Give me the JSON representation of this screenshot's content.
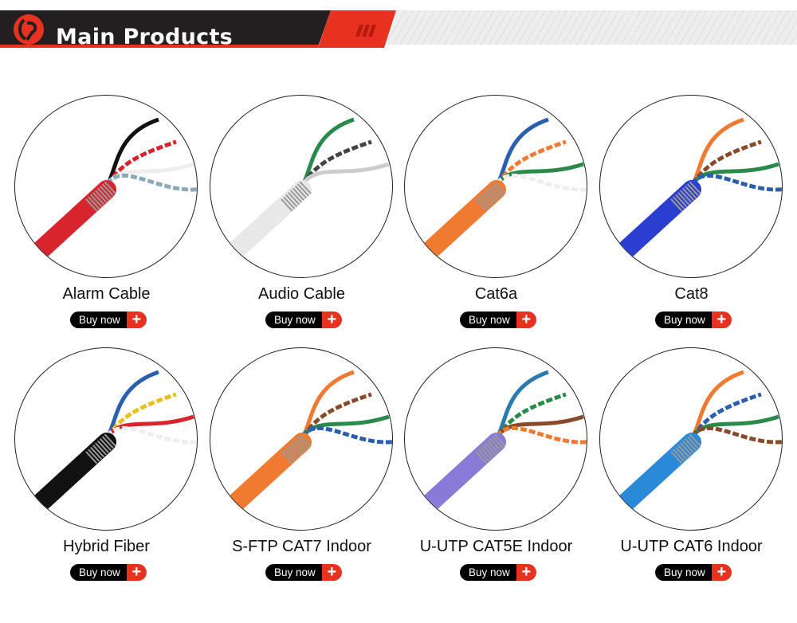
{
  "header": {
    "title": "Main Products",
    "logo": "brand-logo",
    "accent": "#e8321f",
    "dark": "#231f20"
  },
  "buy_label": "Buy now",
  "plus_icon": "+",
  "products": [
    {
      "name": "Alarm Cable",
      "jacket": "#d8242c",
      "wires": [
        "#111",
        "#d8242c",
        "#eee",
        "#8ab"
      ]
    },
    {
      "name": "Audio Cable",
      "jacket": "#e8e8e8",
      "wires": [
        "#2a8a4a",
        "#444",
        "#ccc"
      ]
    },
    {
      "name": "Cat6a",
      "jacket": "#f07a30",
      "wires": [
        "#2a5fb0",
        "#f07a30",
        "#2a8a4a",
        "#eee"
      ]
    },
    {
      "name": "Cat8",
      "jacket": "#2a3fd0",
      "wires": [
        "#f07a30",
        "#8a4a2a",
        "#2a8a4a",
        "#2a5fb0"
      ]
    },
    {
      "name": "Hybrid Fiber",
      "jacket": "#111",
      "wires": [
        "#2a5fb0",
        "#e8c020",
        "#d8242c",
        "#eee"
      ]
    },
    {
      "name": "S-FTP CAT7 Indoor",
      "jacket": "#f07a30",
      "wires": [
        "#f07a30",
        "#8a4a2a",
        "#2a8a4a",
        "#2a5fb0"
      ]
    },
    {
      "name": "U-UTP CAT5E Indoor",
      "jacket": "#8a7ad8",
      "wires": [
        "#2a7ab0",
        "#2a8a4a",
        "#8a4a2a",
        "#f07a30"
      ]
    },
    {
      "name": "U-UTP CAT6 Indoor",
      "jacket": "#2a8ad8",
      "wires": [
        "#f07a30",
        "#2a5fb0",
        "#2a8a4a",
        "#8a4a2a"
      ]
    }
  ]
}
